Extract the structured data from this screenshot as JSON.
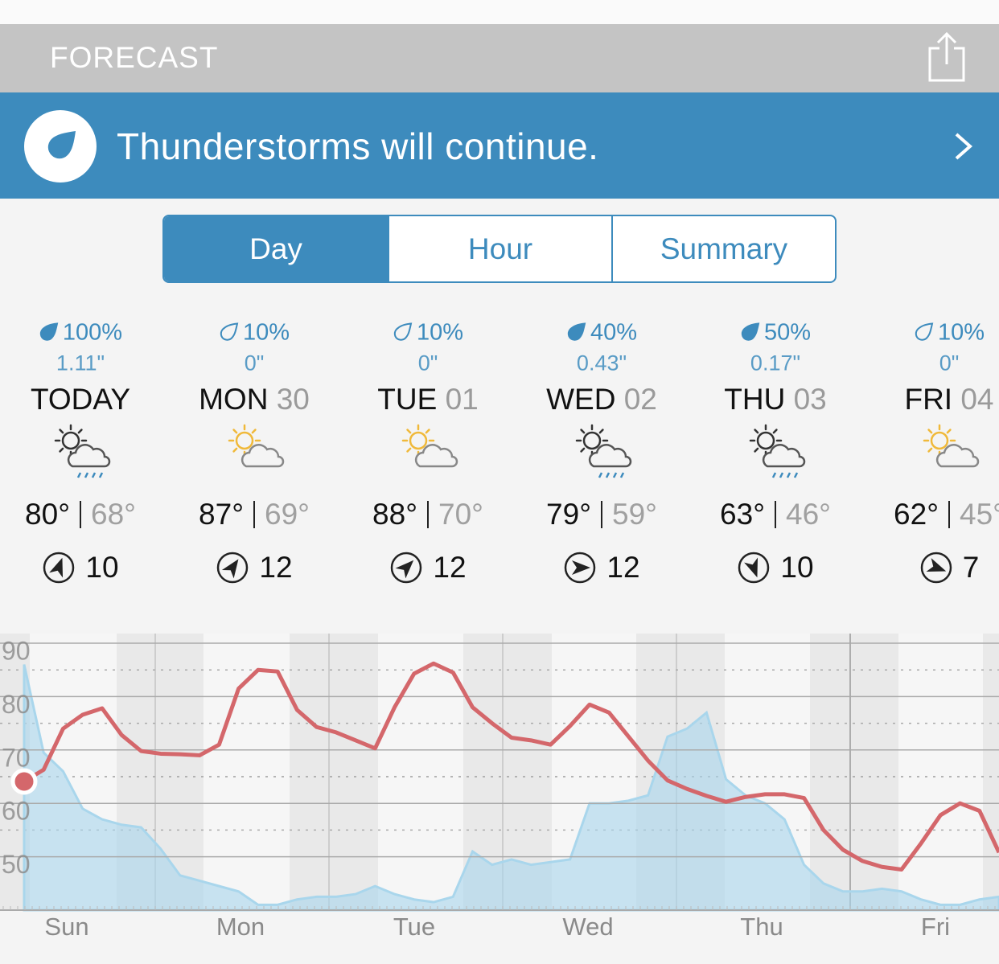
{
  "header": {
    "title": "FORECAST"
  },
  "alert": {
    "text": "Thunderstorms will continue."
  },
  "tabs": [
    {
      "label": "Day",
      "selected": true
    },
    {
      "label": "Hour",
      "selected": false
    },
    {
      "label": "Summary",
      "selected": false
    }
  ],
  "days": [
    {
      "precip_chance": "100%",
      "precip_amount": "1.11\"",
      "day": "TODAY",
      "high": "80°",
      "low": "68°",
      "wind": "10",
      "rain": true,
      "drop": "filled"
    },
    {
      "precip_chance": "10%",
      "precip_amount": "0\"",
      "day": "MON",
      "date": "30",
      "high": "87°",
      "low": "69°",
      "wind": "12",
      "rain": false,
      "drop": "outline"
    },
    {
      "precip_chance": "10%",
      "precip_amount": "0\"",
      "day": "TUE",
      "date": "01",
      "high": "88°",
      "low": "70°",
      "wind": "12",
      "rain": false,
      "drop": "outline"
    },
    {
      "precip_chance": "40%",
      "precip_amount": "0.43\"",
      "day": "WED",
      "date": "02",
      "high": "79°",
      "low": "59°",
      "wind": "12",
      "rain": true,
      "drop": "filled"
    },
    {
      "precip_chance": "50%",
      "precip_amount": "0.17\"",
      "day": "THU",
      "date": "03",
      "high": "63°",
      "low": "46°",
      "wind": "10",
      "rain": true,
      "drop": "filled"
    },
    {
      "precip_chance": "10%",
      "precip_amount": "0\"",
      "day": "FRI",
      "date": "04",
      "high": "62°",
      "low": "45°",
      "wind": "7",
      "rain": false,
      "drop": "outline"
    }
  ],
  "chart": {
    "type": "line",
    "categories": [
      "Sun",
      "Mon",
      "Tue",
      "Wed",
      "Thu",
      "Fri"
    ],
    "ylim": [
      40,
      90
    ],
    "yticks": [
      50,
      60,
      70,
      80,
      90
    ],
    "y2lim": [
      0,
      100
    ],
    "grid": true,
    "series": [
      {
        "color": "#d4676b",
        "values": [
          64.1,
          66.3,
          74,
          76.6,
          77.8,
          72.8,
          69.8,
          69.3,
          69.2,
          69.0,
          71,
          81.5,
          85,
          84.7,
          77.5,
          74.3,
          73.3,
          71.8,
          70.3,
          78,
          84.3,
          86.2,
          84.5,
          78,
          75,
          72.3,
          71.8,
          71,
          74.5,
          78.5,
          77,
          72.5,
          68,
          64.3,
          62.7,
          61.4,
          60.3,
          61.2,
          61.7,
          61.7,
          61,
          55,
          51.3,
          49.2,
          48.1,
          47.6,
          52.5,
          57.8,
          60,
          58.6,
          50.8
        ]
      },
      {
        "color": "#a9d6ec",
        "axis": "y2",
        "fill": true,
        "values": [
          92,
          59,
          52,
          38,
          34,
          32,
          31,
          23,
          13,
          11,
          9,
          7,
          2,
          2,
          4,
          5,
          5,
          6,
          9,
          6,
          4,
          3,
          5,
          22,
          17,
          19,
          17,
          18,
          19,
          40,
          40,
          41,
          43,
          65,
          68,
          74,
          49,
          43,
          40,
          34,
          17,
          10,
          7,
          7,
          8,
          7,
          4,
          2,
          2,
          4,
          5
        ]
      }
    ]
  }
}
